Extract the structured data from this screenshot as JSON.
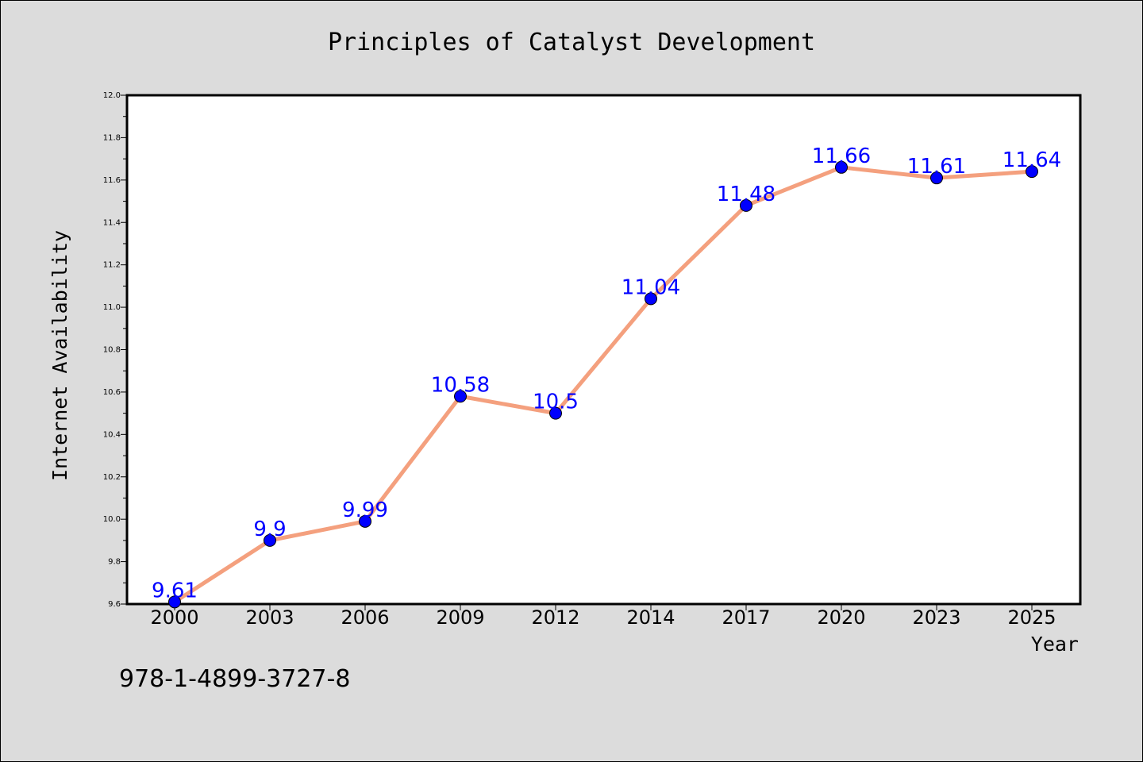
{
  "chart_data": {
    "type": "line",
    "title": "Principles of Catalyst Development",
    "xlabel": "Year",
    "ylabel": "Internet Availability",
    "categories": [
      "2000",
      "2003",
      "2006",
      "2009",
      "2012",
      "2014",
      "2017",
      "2020",
      "2023",
      "2025"
    ],
    "series": [
      {
        "values": [
          9.61,
          9.9,
          9.99,
          10.58,
          10.5,
          11.04,
          11.48,
          11.66,
          11.61,
          11.64
        ],
        "labels": [
          "9.61",
          "9.9",
          "9.99",
          "10.58",
          "10.5",
          "11.04",
          "11.48",
          "11.66",
          "11.61",
          "11.64"
        ]
      }
    ],
    "ylim": [
      9.6,
      12.0
    ],
    "yticks": [
      "9.6",
      "9.8",
      "10.0",
      "10.2",
      "10.4",
      "10.6",
      "10.8",
      "11.0",
      "11.2",
      "11.4",
      "11.6",
      "11.8",
      "12.0"
    ],
    "grid": false,
    "legend": "none",
    "colors": {
      "line": "#f4a07e",
      "marker": "#0000ff",
      "data_label": "#0000ff",
      "background": "#dcdcdc",
      "plot_area": "#ffffff"
    }
  },
  "footer": {
    "isbn": "978-1-4899-3727-8"
  }
}
